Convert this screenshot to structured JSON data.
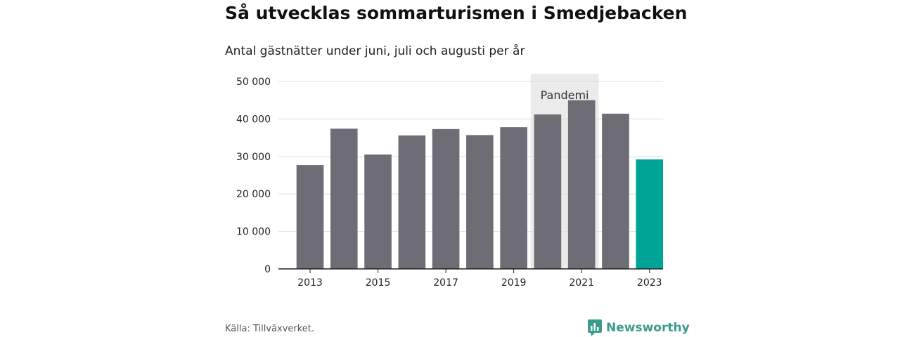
{
  "title": "Så utvecklas sommarturismen i Smedjebacken",
  "subtitle": "Antal gästnätter under juni, juli och augusti per år",
  "source": "Källa: Tillväxverket.",
  "brand": {
    "name": "Newsworthy",
    "icon": "newsworthy-logo-icon",
    "color": "#3a9c8d"
  },
  "chart_data": {
    "type": "bar",
    "categories": [
      "2013",
      "2014",
      "2015",
      "2016",
      "2017",
      "2018",
      "2019",
      "2020",
      "2021",
      "2022",
      "2023"
    ],
    "values": [
      27700,
      37400,
      30500,
      35600,
      37300,
      35700,
      37800,
      41200,
      45000,
      41400,
      29200
    ],
    "x_tick_labels": [
      "2013",
      "2015",
      "2017",
      "2019",
      "2021",
      "2023"
    ],
    "y_ticks": [
      0,
      10000,
      20000,
      30000,
      40000,
      50000
    ],
    "y_tick_labels": [
      "0",
      "10 000",
      "20 000",
      "30 000",
      "40 000",
      "50 000"
    ],
    "ylim": [
      0,
      50000
    ],
    "xlabel": "",
    "ylabel": "",
    "grid": true,
    "colors": {
      "bar": "#6e6d75",
      "highlight": "#00a497",
      "highlight_category": "2023",
      "gridline": "#dddddd",
      "axis": "#222222"
    },
    "annotation": {
      "label": "Pandemi",
      "from": "2020",
      "to": "2021",
      "fill": "#ebebeb"
    }
  }
}
